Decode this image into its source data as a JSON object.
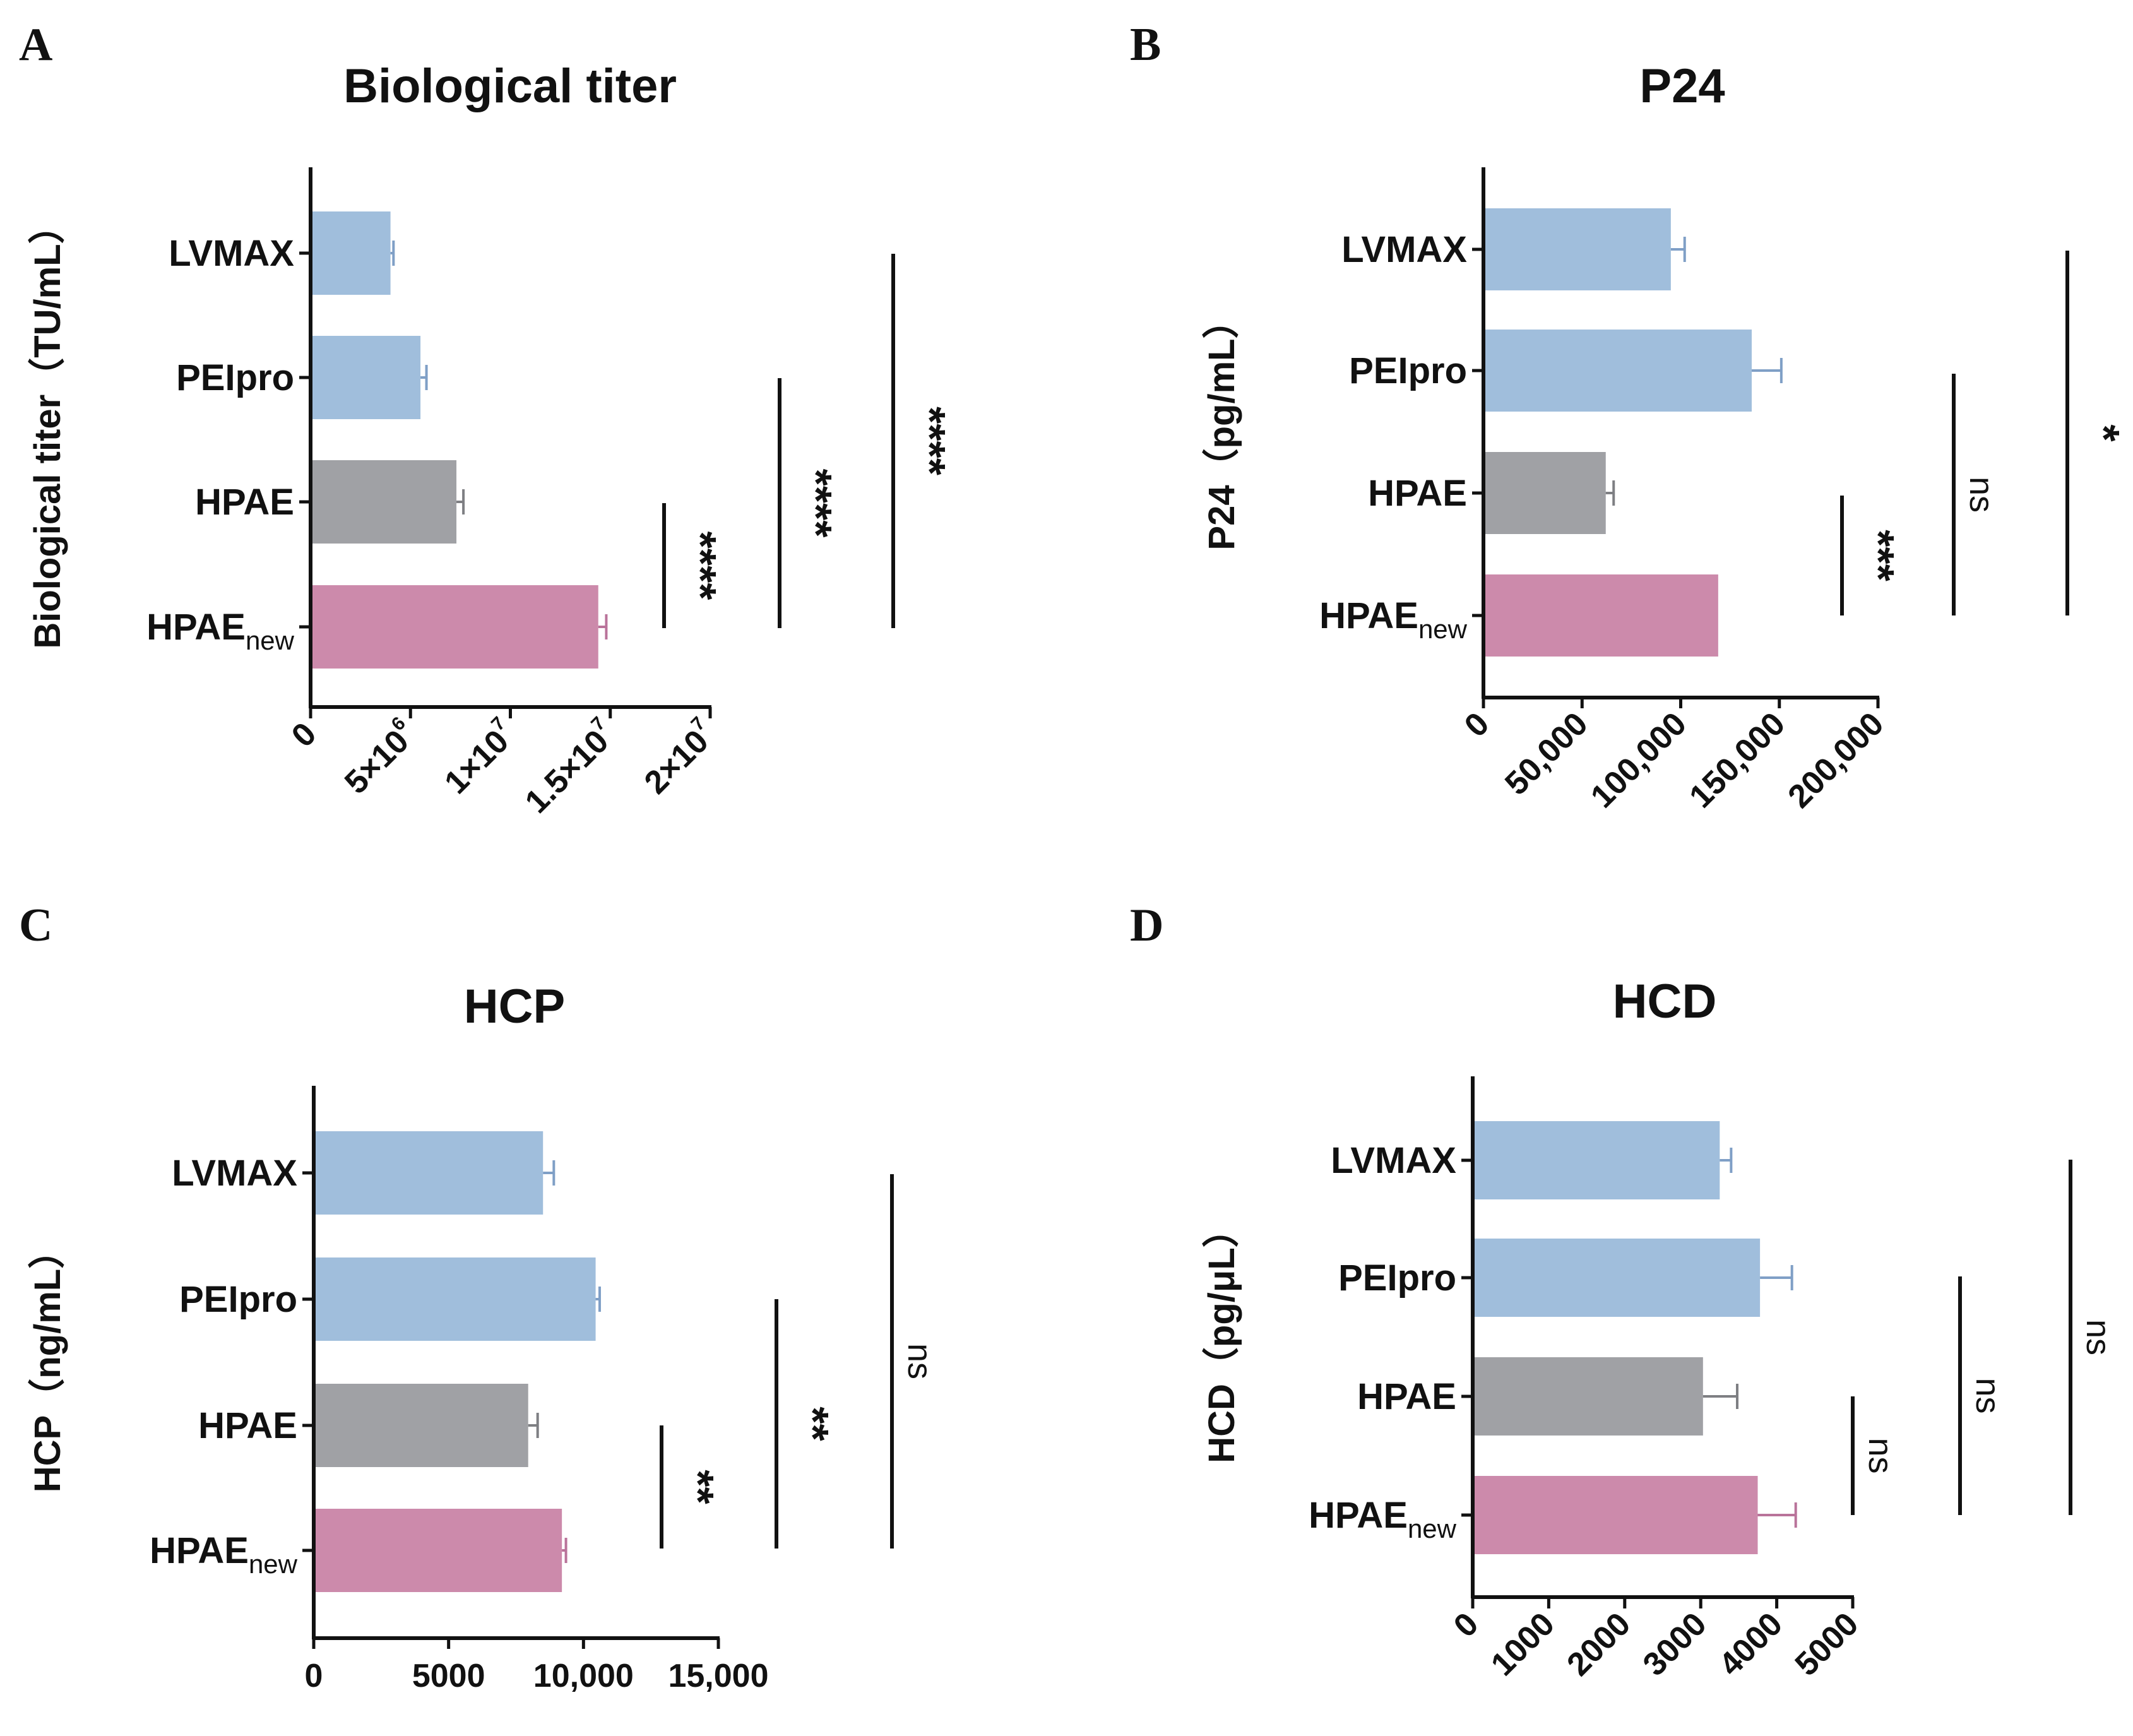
{
  "colors": {
    "LVMAX": "#a0bedc",
    "PEIpro": "#a0bedc",
    "HPAE": "#a0a1a5",
    "HPAEnew": "#cc8aab",
    "axis": "#111111"
  },
  "chart_data": [
    {
      "panel": "A",
      "type": "bar",
      "orientation": "horizontal",
      "title": "Biological titer",
      "ylabel": "Biological titer（TU/mL）",
      "categories": [
        {
          "main": "LVMAX",
          "sub": ""
        },
        {
          "main": "PEIpro",
          "sub": ""
        },
        {
          "main": "HPAE",
          "sub": ""
        },
        {
          "main": "HPAE",
          "sub": "new"
        }
      ],
      "values": [
        4000000,
        5500000,
        7300000,
        14400000
      ],
      "errors": [
        150000,
        300000,
        350000,
        400000
      ],
      "xlim": [
        0,
        20000000
      ],
      "ticks": [
        {
          "value": 0,
          "base": "0",
          "exp": ""
        },
        {
          "value": 5000000,
          "base": "5×10",
          "exp": "6"
        },
        {
          "value": 10000000,
          "base": "1×10",
          "exp": "7"
        },
        {
          "value": 15000000,
          "base": "1.5×10",
          "exp": "7"
        },
        {
          "value": 20000000,
          "base": "2×10",
          "exp": "7"
        }
      ],
      "comparisons": [
        {
          "from": 2,
          "to": 3,
          "label": "****"
        },
        {
          "from": 1,
          "to": 3,
          "label": "****"
        },
        {
          "from": 0,
          "to": 3,
          "label": "****"
        }
      ]
    },
    {
      "panel": "B",
      "type": "bar",
      "orientation": "horizontal",
      "title": "P24",
      "ylabel": "P24（pg/mL）",
      "categories": [
        {
          "main": "LVMAX",
          "sub": ""
        },
        {
          "main": "PEIpro",
          "sub": ""
        },
        {
          "main": "HPAE",
          "sub": ""
        },
        {
          "main": "HPAE",
          "sub": "new"
        }
      ],
      "values": [
        95000,
        136000,
        62000,
        119000
      ],
      "errors": [
        7000,
        15000,
        4000,
        0
      ],
      "xlim": [
        0,
        200000
      ],
      "ticks": [
        {
          "value": 0,
          "base": "0",
          "exp": ""
        },
        {
          "value": 50000,
          "base": "50,000",
          "exp": ""
        },
        {
          "value": 100000,
          "base": "100,000",
          "exp": ""
        },
        {
          "value": 150000,
          "base": "150,000",
          "exp": ""
        },
        {
          "value": 200000,
          "base": "200,000",
          "exp": ""
        }
      ],
      "comparisons": [
        {
          "from": 2,
          "to": 3,
          "label": "***"
        },
        {
          "from": 1,
          "to": 3,
          "label": "ns"
        },
        {
          "from": 0,
          "to": 3,
          "label": "*"
        }
      ]
    },
    {
      "panel": "C",
      "type": "bar",
      "orientation": "horizontal",
      "title": "HCP",
      "ylabel": "HCP（ng/mL）",
      "categories": [
        {
          "main": "LVMAX",
          "sub": ""
        },
        {
          "main": "PEIpro",
          "sub": ""
        },
        {
          "main": "HPAE",
          "sub": ""
        },
        {
          "main": "HPAE",
          "sub": "new"
        }
      ],
      "values": [
        8500,
        10450,
        7950,
        9200
      ],
      "errors": [
        400,
        150,
        350,
        150
      ],
      "xlim": [
        0,
        15000
      ],
      "ticks": [
        {
          "value": 0,
          "base": "0",
          "exp": ""
        },
        {
          "value": 5000,
          "base": "5000",
          "exp": ""
        },
        {
          "value": 10000,
          "base": "10,000",
          "exp": ""
        },
        {
          "value": 15000,
          "base": "15,000",
          "exp": ""
        }
      ],
      "comparisons": [
        {
          "from": 2,
          "to": 3,
          "label": "**"
        },
        {
          "from": 1,
          "to": 3,
          "label": "**"
        },
        {
          "from": 0,
          "to": 3,
          "label": "ns"
        }
      ]
    },
    {
      "panel": "D",
      "type": "bar",
      "orientation": "horizontal",
      "title": "HCD",
      "ylabel": "HCD（pg/μL）",
      "categories": [
        {
          "main": "LVMAX",
          "sub": ""
        },
        {
          "main": "PEIpro",
          "sub": ""
        },
        {
          "main": "HPAE",
          "sub": ""
        },
        {
          "main": "HPAE",
          "sub": "new"
        }
      ],
      "values": [
        3250,
        3780,
        3030,
        3750
      ],
      "errors": [
        150,
        420,
        450,
        500
      ],
      "xlim": [
        0,
        5000
      ],
      "ticks": [
        {
          "value": 0,
          "base": "0",
          "exp": ""
        },
        {
          "value": 1000,
          "base": "1000",
          "exp": ""
        },
        {
          "value": 2000,
          "base": "2000",
          "exp": ""
        },
        {
          "value": 3000,
          "base": "3000",
          "exp": ""
        },
        {
          "value": 4000,
          "base": "4000",
          "exp": ""
        },
        {
          "value": 5000,
          "base": "5000",
          "exp": ""
        }
      ],
      "comparisons": [
        {
          "from": 2,
          "to": 3,
          "label": "ns"
        },
        {
          "from": 1,
          "to": 3,
          "label": "ns"
        },
        {
          "from": 0,
          "to": 3,
          "label": "ns"
        }
      ]
    }
  ]
}
